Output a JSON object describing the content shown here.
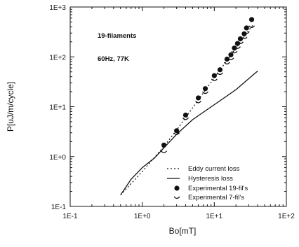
{
  "chart_data": {
    "type": "scatter",
    "xlabel": "Bo[mT]",
    "ylabel": "P[uJ/m/cycle]",
    "xscale": "log",
    "yscale": "log",
    "xlim": [
      0.1,
      100
    ],
    "ylim": [
      0.1,
      1000
    ],
    "grid": false,
    "legend_position": "bottom-right",
    "x_ticks": [
      "1E-1",
      "1E+0",
      "1E+1",
      "1E+2"
    ],
    "y_ticks": [
      "1E-1",
      "1E+0",
      "1E+1",
      "1E+2",
      "1E+3"
    ],
    "annotations": [
      "19-filaments",
      "60Hz, 77K"
    ],
    "series": [
      {
        "name": "Eddy current loss",
        "style": "dotted-line",
        "x": [
          0.5,
          1,
          2,
          3,
          5,
          10,
          20,
          30,
          35
        ],
        "y": [
          0.17,
          0.5,
          1.6,
          3.4,
          9.5,
          38,
          150,
          340,
          450
        ]
      },
      {
        "name": "Hysteresis loss",
        "style": "solid-line",
        "x": [
          0.5,
          0.7,
          1,
          1.5,
          2,
          3,
          5,
          10,
          20,
          40
        ],
        "y": [
          0.17,
          0.35,
          0.6,
          0.95,
          1.5,
          2.8,
          5.5,
          11,
          22,
          52
        ]
      },
      {
        "name": "Experimental 19-fil's",
        "style": "filled-circle",
        "x": [
          2,
          3,
          4,
          6,
          7.5,
          10,
          12,
          15,
          17,
          19,
          21,
          23,
          26,
          28,
          33
        ],
        "y": [
          1.7,
          3.3,
          6.8,
          15,
          23,
          42,
          55,
          90,
          110,
          150,
          185,
          230,
          290,
          380,
          560
        ]
      },
      {
        "name": "Experimental 7-fil's",
        "style": "open-marker",
        "x": [
          2,
          3,
          4,
          6,
          7.5,
          10,
          12,
          15,
          17,
          19,
          21,
          23,
          26,
          28,
          33
        ],
        "y": [
          1.3,
          3.0,
          6.0,
          13,
          20,
          36,
          48,
          78,
          95,
          130,
          160,
          200,
          250,
          320,
          420
        ]
      }
    ]
  }
}
